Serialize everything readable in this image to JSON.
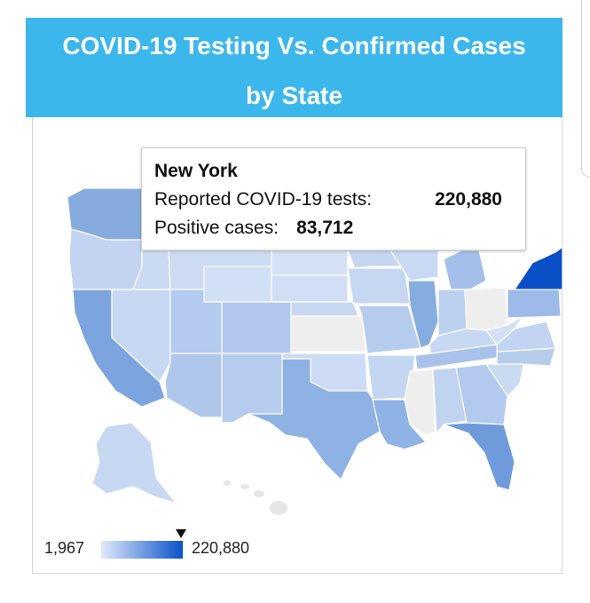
{
  "header": {
    "title_line1": "COVID-19 Testing Vs. Confirmed Cases",
    "title_line2": "by State"
  },
  "tooltip": {
    "state": "New York",
    "tests_label": "Reported COVID-19 tests:",
    "tests_value": "220,880",
    "positive_label": "Positive cases:",
    "positive_value": "83,712"
  },
  "legend": {
    "min": "1,967",
    "max": "220,880",
    "color_low": "#dfe9fb",
    "color_high": "#0b52c8",
    "no_data_color": "#eeeeee"
  },
  "chart_data": {
    "type": "choropleth",
    "metric": "Reported COVID-19 tests",
    "range": [
      1967,
      220880
    ],
    "highlighted": {
      "state": "New York",
      "tests": 220880,
      "positive": 83712
    },
    "no_data_states": [
      "Kansas",
      "Mississippi",
      "Ohio"
    ]
  },
  "colors": {
    "header_bg": "#3bb7ec",
    "header_text": "#ffffff"
  }
}
